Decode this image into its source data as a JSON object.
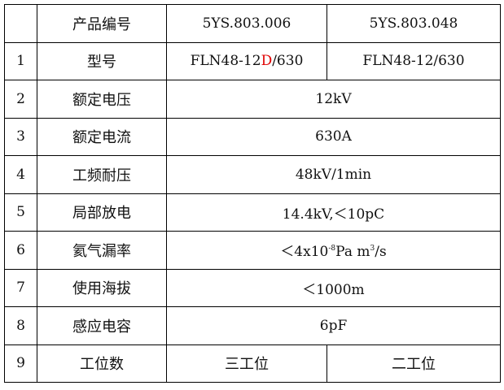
{
  "header": {
    "label": "产品编号",
    "codes": [
      "5YS.803.006",
      "5YS.803.048"
    ]
  },
  "rows": [
    {
      "num": "1",
      "label": "型号",
      "model_a_prefix": "FLN48-12",
      "model_a_highlight": "D",
      "model_a_suffix": "/630",
      "model_b": "FLN48-12/630"
    },
    {
      "num": "2",
      "label": "额定电压",
      "value": "12kV"
    },
    {
      "num": "3",
      "label": "额定电流",
      "value": "630A"
    },
    {
      "num": "4",
      "label": "工频耐压",
      "value": "48kV/1min"
    },
    {
      "num": "5",
      "label": "局部放电",
      "value": "14.4kV,＜10pC"
    },
    {
      "num": "6",
      "label": "氦气漏率",
      "value_a": "＜4x10",
      "exp1": "-8",
      "value_b": "Pa m",
      "exp2": "3",
      "value_c": "/s"
    },
    {
      "num": "7",
      "label": "使用海拔",
      "value": "＜1000m"
    },
    {
      "num": "8",
      "label": "感应电容",
      "value": "6pF"
    },
    {
      "num": "9",
      "label": "工位数",
      "values": [
        "三工位",
        "二工位"
      ]
    }
  ],
  "colors": {
    "highlight": "#e00000",
    "border": "#000000"
  }
}
